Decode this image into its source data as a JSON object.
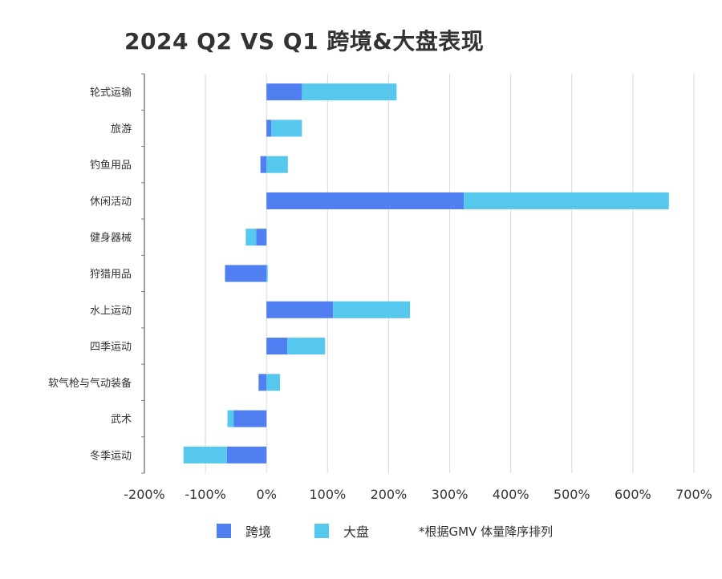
{
  "chart_data": {
    "type": "bar",
    "orientation": "horizontal",
    "stacked": true,
    "title": "2024 Q2 VS Q1 跨境&大盘表现",
    "categories": [
      "轮式运输",
      "旅游",
      "钓鱼用品",
      "休闲活动",
      "健身器械",
      "狩猎用品",
      "水上运动",
      "四季运动",
      "软气枪与气动装备",
      "武术",
      "冬季运动"
    ],
    "series": [
      {
        "name": "跨境",
        "color": "#4f7ff0",
        "values": [
          58,
          8,
          -10,
          323,
          -17,
          -68,
          109,
          34,
          -13,
          -54,
          -65
        ]
      },
      {
        "name": "大盘",
        "color": "#56c8ee",
        "values": [
          155,
          50,
          35,
          336,
          -17,
          2,
          126,
          62,
          22,
          -10,
          -71
        ]
      }
    ],
    "xlim": [
      -200,
      700
    ],
    "xticks": [
      -200,
      -100,
      0,
      100,
      200,
      300,
      400,
      500,
      600,
      700
    ],
    "xtick_labels": [
      "-200%",
      "-100%",
      "0%",
      "100%",
      "200%",
      "300%",
      "400%",
      "500%",
      "600%",
      "700%"
    ],
    "grid": true,
    "legend_position": "bottom"
  },
  "legend": {
    "items": [
      {
        "label": "跨境",
        "color": "#4f7ff0"
      },
      {
        "label": "大盘",
        "color": "#56c8ee"
      }
    ],
    "note": "*根据GMV 体量降序排列"
  }
}
